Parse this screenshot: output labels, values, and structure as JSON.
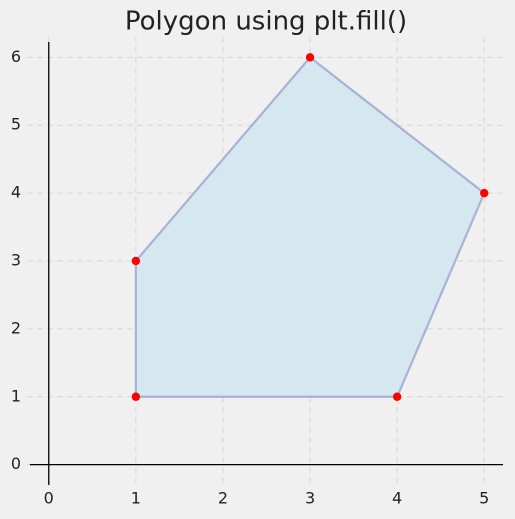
{
  "chart_data": {
    "type": "fill",
    "title": "Polygon using plt.fill()",
    "x": [
      1,
      4,
      5,
      3,
      1
    ],
    "y": [
      1,
      1,
      4,
      6,
      3
    ],
    "fill_color": "#d5e8ef",
    "edge_color": "#a9b1d7",
    "marker_color": "#ff0000",
    "xlim": [
      -0.25,
      5.25
    ],
    "ylim": [
      -0.3,
      6.3
    ],
    "xticks": [
      0,
      1,
      2,
      3,
      4,
      5
    ],
    "yticks": [
      0,
      1,
      2,
      3,
      4,
      5,
      6
    ],
    "grid": true
  }
}
